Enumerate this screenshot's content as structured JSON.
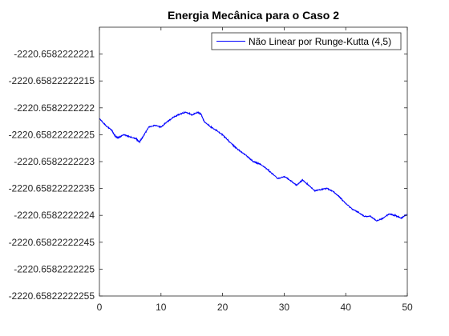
{
  "chart_data": {
    "type": "line",
    "title": "Energia Mecânica para o Caso 2",
    "xlabel": "",
    "ylabel": "",
    "xlim": [
      0,
      50
    ],
    "ylim": [
      -2220.65822222255,
      -2220.65822222205
    ],
    "grid": false,
    "legend_placement": "top-right",
    "x_ticks": [
      0,
      10,
      20,
      30,
      40,
      50
    ],
    "x_tick_labels": [
      "0",
      "10",
      "20",
      "30",
      "40",
      "50"
    ],
    "y_ticks": [
      -2220.6582222221,
      -2220.65822222215,
      -2220.6582222222,
      -2220.65822222225,
      -2220.6582222223,
      -2220.65822222235,
      -2220.6582222224,
      -2220.65822222245,
      -2220.6582222225,
      -2220.65822222255
    ],
    "y_tick_labels": [
      "-2220.6582222221",
      "-2220.65822222215",
      "-2220.6582222222",
      "-2220.65822222225",
      "-2220.6582222223",
      "-2220.65822222235",
      "-2220.6582222224",
      "-2220.65822222245",
      "-2220.6582222225",
      "-2220.65822222255"
    ],
    "series": [
      {
        "name": "Não Linear por Runge-Kutta (4,5)",
        "color": "#0000ff",
        "x": [
          0,
          1,
          2,
          2.5,
          3,
          4,
          5,
          6,
          6.5,
          7,
          8,
          9,
          10,
          11,
          12,
          13,
          14,
          15,
          16,
          16.5,
          17,
          18,
          19,
          20,
          21,
          22,
          23,
          24,
          25,
          26,
          27,
          28,
          29,
          30,
          31,
          32,
          33,
          34,
          35,
          36,
          37,
          38,
          39,
          40,
          41,
          42,
          43,
          44,
          45,
          46,
          47,
          48,
          49,
          50
        ],
        "y": [
          -2220.65822222222,
          -2220.658222222233,
          -2220.658222222242,
          -2220.658222222252,
          -2220.658222222256,
          -2220.65822222225,
          -2220.658222222254,
          -2220.658222222258,
          -2220.658222222264,
          -2220.658222222255,
          -2220.658222222236,
          -2220.658222222233,
          -2220.658222222236,
          -2220.658222222226,
          -2220.658222222218,
          -2220.658222222212,
          -2220.658222222208,
          -2220.658222222213,
          -2220.658222222208,
          -2220.658222222212,
          -2220.658222222225,
          -2220.658222222235,
          -2220.658222222242,
          -2220.65822222225,
          -2220.658222222262,
          -2220.658222222273,
          -2220.658222222282,
          -2220.65822222229,
          -2220.6582222223,
          -2220.658222222304,
          -2220.658222222312,
          -2220.658222222322,
          -2220.658222222332,
          -2220.658222222328,
          -2220.658222222335,
          -2220.658222222344,
          -2220.658222222334,
          -2220.658222222344,
          -2220.658222222354,
          -2220.658222222352,
          -2220.65822222235,
          -2220.658222222356,
          -2220.658222222366,
          -2220.658222222378,
          -2220.658222222388,
          -2220.658222222394,
          -2220.658222222402,
          -2220.658222222402,
          -2220.65822222241,
          -2220.658222222406,
          -2220.658222222398,
          -2220.6582222224,
          -2220.658222222405,
          -2220.658222222398
        ]
      }
    ]
  }
}
